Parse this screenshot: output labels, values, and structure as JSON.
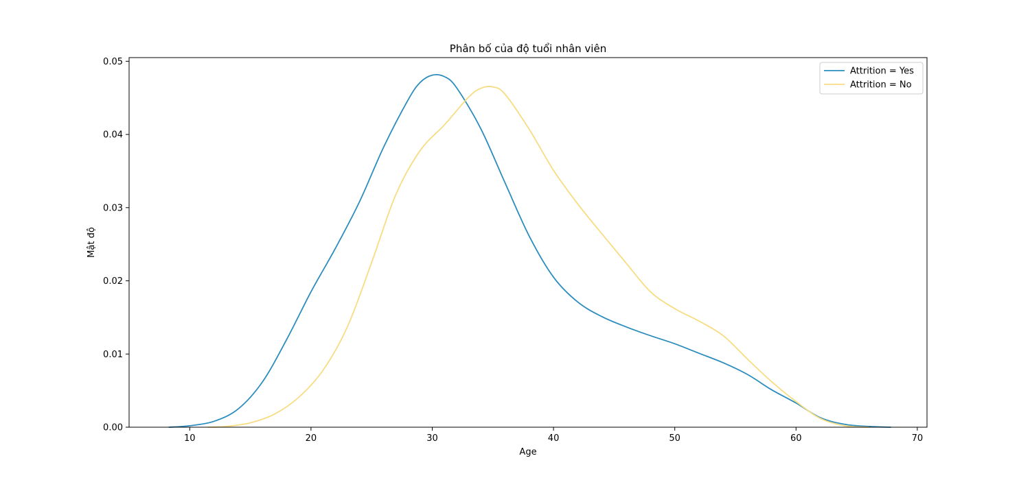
{
  "chart_data": {
    "type": "line",
    "title": "Phân bố của độ tuổi nhân viên",
    "xlabel": "Age",
    "ylabel": "Mật độ",
    "xlim": [
      5,
      70.8
    ],
    "ylim": [
      0,
      0.0505
    ],
    "xticks": [
      10,
      20,
      30,
      40,
      50,
      60,
      70
    ],
    "yticks": [
      0.0,
      0.01,
      0.02,
      0.03,
      0.04,
      0.05
    ],
    "ytick_labels": [
      "0.00",
      "0.01",
      "0.02",
      "0.03",
      "0.04",
      "0.05"
    ],
    "legend_position": "upper right",
    "grid": false,
    "series": [
      {
        "name": "Attrition = Yes",
        "color": "#2b8cbe",
        "x": [
          8.3,
          10,
          12,
          14,
          16,
          18,
          20,
          22,
          24,
          26,
          28,
          29,
          30,
          31,
          32,
          34,
          36,
          38,
          40,
          42,
          44,
          46,
          48,
          50,
          52,
          54,
          56,
          58,
          60,
          62,
          64,
          66,
          67.8
        ],
        "y": [
          0.0,
          0.0002,
          0.0008,
          0.0025,
          0.0062,
          0.012,
          0.0185,
          0.0244,
          0.0308,
          0.0383,
          0.0447,
          0.0471,
          0.0481,
          0.0479,
          0.0464,
          0.0408,
          0.0334,
          0.0261,
          0.0205,
          0.0171,
          0.0151,
          0.0137,
          0.0125,
          0.0114,
          0.0101,
          0.0088,
          0.0072,
          0.0051,
          0.0033,
          0.0013,
          0.0004,
          0.0001,
          0.0
        ]
      },
      {
        "name": "Attrition = No",
        "color": "#f7dc82",
        "x": [
          11.5,
          13,
          15,
          17,
          19,
          21,
          23,
          25,
          27,
          29,
          31,
          33,
          34,
          35,
          36,
          38,
          40,
          42,
          44,
          46,
          48,
          50,
          52,
          54,
          56,
          58,
          60,
          62,
          64,
          66
        ],
        "y": [
          0.0,
          0.0001,
          0.0006,
          0.0018,
          0.0041,
          0.0078,
          0.0137,
          0.0225,
          0.0318,
          0.0378,
          0.0413,
          0.0451,
          0.0463,
          0.0465,
          0.0455,
          0.0407,
          0.0351,
          0.0305,
          0.0264,
          0.0224,
          0.0185,
          0.0162,
          0.0145,
          0.0125,
          0.0093,
          0.0062,
          0.0035,
          0.0012,
          0.0002,
          0.0
        ]
      }
    ]
  }
}
